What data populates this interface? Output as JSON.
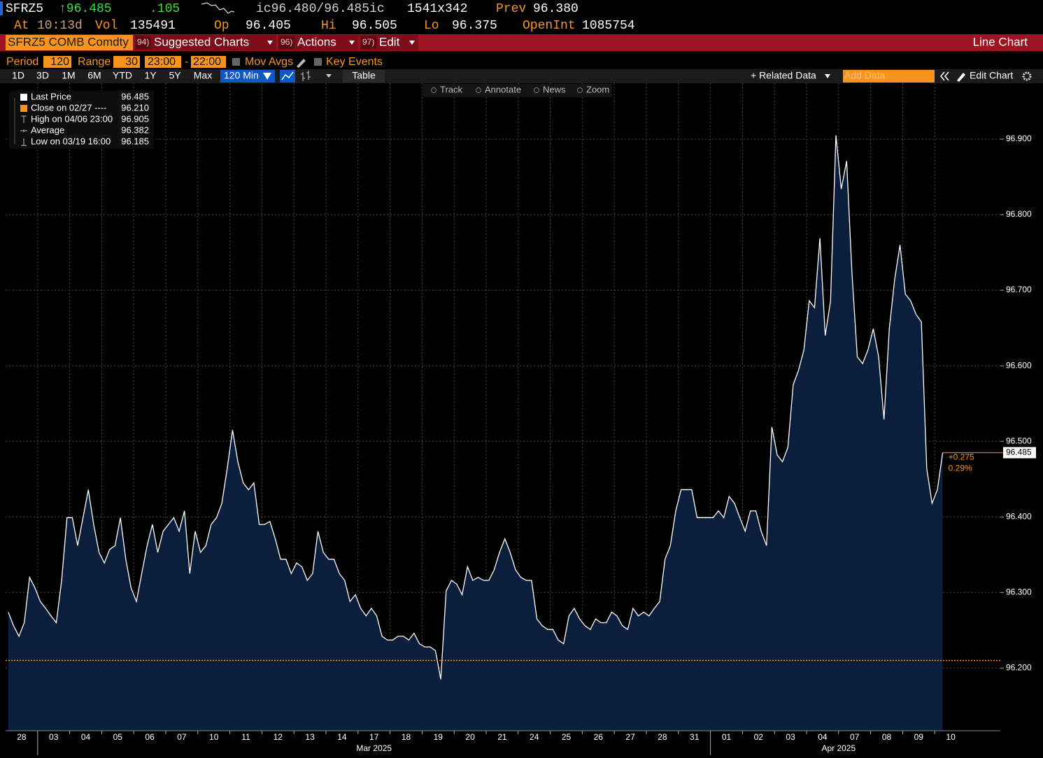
{
  "header": {
    "ticker": "SFRZ5",
    "last": "↑96.485",
    "change": ".105",
    "bid_ask": "ic96.480/96.485ic",
    "size": "1541x342",
    "prev_label": "Prev",
    "prev": "96.380",
    "time_label": "At",
    "time": "10:13d",
    "vol_label": "Vol",
    "vol": "135491",
    "open_label": "Op",
    "open": "96.405",
    "hi_label": "Hi",
    "hi": "96.505",
    "lo_label": "Lo",
    "lo": "96.375",
    "oi_label": "OpenInt",
    "oi": "1085754"
  },
  "menu": {
    "security": "SFRZ5 COMB Comdty",
    "items": [
      {
        "num": "94)",
        "label": "Suggested Charts"
      },
      {
        "num": "96)",
        "label": "Actions"
      },
      {
        "num": "97)",
        "label": "Edit"
      }
    ],
    "view": "Line Chart"
  },
  "settings": {
    "period_label": "Period",
    "period": "120",
    "range_label": "Range",
    "range": "30",
    "start": "23:00",
    "sep": "-",
    "end": "22:00",
    "mov_avgs": "Mov Avgs",
    "key_events": "Key Events"
  },
  "toolbar": {
    "ranges": [
      "1D",
      "3D",
      "1M",
      "6M",
      "YTD",
      "1Y",
      "5Y",
      "Max"
    ],
    "interval": "120 Min",
    "table": "Table",
    "related": "+ Related Data",
    "add_data": "Add Data",
    "edit_chart": "Edit Chart"
  },
  "chart_tools": [
    "Track",
    "Annotate",
    "News",
    "Zoom"
  ],
  "chart_data": {
    "type": "line",
    "categories": [
      "28",
      null,
      null,
      null,
      null,
      null,
      "03",
      null,
      null,
      null,
      null,
      null,
      "04",
      null,
      null,
      null,
      null,
      null,
      "05",
      null,
      null,
      null,
      null,
      null,
      "06",
      null,
      null,
      null,
      null,
      null,
      "07",
      null,
      null,
      null,
      null,
      null,
      "10",
      null,
      null,
      null,
      null,
      null,
      "11",
      null,
      null,
      null,
      null,
      null,
      "12",
      null,
      null,
      null,
      null,
      null,
      "13",
      null,
      null,
      null,
      null,
      null,
      "14",
      null,
      null,
      null,
      null,
      null,
      "17",
      null,
      null,
      null,
      null,
      null,
      "18",
      null,
      null,
      null,
      null,
      null,
      "19",
      null,
      null,
      null,
      null,
      null,
      "20",
      null,
      null,
      null,
      null,
      null,
      "21",
      null,
      null,
      null,
      null,
      null,
      "24",
      null,
      null,
      null,
      null,
      null,
      "25",
      null,
      null,
      null,
      null,
      null,
      "26",
      null,
      null,
      null,
      null,
      null,
      "27",
      null,
      null,
      null,
      null,
      null,
      "28",
      null,
      null,
      null,
      null,
      null,
      "31",
      null,
      null,
      null,
      null,
      null,
      "01",
      null,
      null,
      null,
      null,
      null,
      "02",
      null,
      null,
      null,
      null,
      null,
      "03",
      null,
      null,
      null,
      null,
      null,
      "04",
      null,
      null,
      null,
      null,
      null,
      "07",
      null,
      null,
      null,
      null,
      null,
      "08",
      null,
      null,
      null,
      null,
      null,
      "09",
      null,
      null,
      null,
      null,
      null,
      "10",
      null,
      null,
      null,
      null,
      null
    ],
    "months": [
      "Mar 2025",
      "Apr 2025"
    ],
    "series": [
      {
        "name": "Last Price",
        "color": "#ffffff",
        "fill": "#0b1f3d",
        "values": [
          96.274,
          96.256,
          96.242,
          96.26,
          96.32,
          96.306,
          96.288,
          96.279,
          96.269,
          96.26,
          96.316,
          96.399,
          96.399,
          96.362,
          96.399,
          96.436,
          96.39,
          96.353,
          96.339,
          96.357,
          96.362,
          96.399,
          96.344,
          96.306,
          96.288,
          96.325,
          96.362,
          96.39,
          96.353,
          96.381,
          96.39,
          96.399,
          96.381,
          96.408,
          96.325,
          96.381,
          96.353,
          96.362,
          96.39,
          96.399,
          96.418,
          96.464,
          96.515,
          96.473,
          96.445,
          96.436,
          96.445,
          96.39,
          96.39,
          96.394,
          96.371,
          96.344,
          96.344,
          96.325,
          96.339,
          96.334,
          96.316,
          96.325,
          96.381,
          96.353,
          96.344,
          96.344,
          96.325,
          96.316,
          96.288,
          96.297,
          96.279,
          96.269,
          96.279,
          96.269,
          96.242,
          96.237,
          96.237,
          96.242,
          96.242,
          96.237,
          96.246,
          96.232,
          96.228,
          96.228,
          96.223,
          96.185,
          96.302,
          96.316,
          96.311,
          96.297,
          96.334,
          96.316,
          96.32,
          96.316,
          96.316,
          96.33,
          96.353,
          96.371,
          96.353,
          96.33,
          96.32,
          96.316,
          96.316,
          96.265,
          96.256,
          96.251,
          96.251,
          96.237,
          96.232,
          96.269,
          96.279,
          96.265,
          96.256,
          96.251,
          96.265,
          96.26,
          96.26,
          96.274,
          96.269,
          96.256,
          96.251,
          96.279,
          96.269,
          96.274,
          96.269,
          96.279,
          96.288,
          96.344,
          96.362,
          96.408,
          96.436,
          96.436,
          96.436,
          96.399,
          96.399,
          96.399,
          96.399,
          96.408,
          96.399,
          96.427,
          96.418,
          96.399,
          96.381,
          96.408,
          96.408,
          96.381,
          96.362,
          96.519,
          96.482,
          96.473,
          96.492,
          96.575,
          96.594,
          96.621,
          96.686,
          96.677,
          96.769,
          96.64,
          96.686,
          96.905,
          96.834,
          96.871,
          96.723,
          96.612,
          96.603,
          96.621,
          96.649,
          96.612,
          96.529,
          96.649,
          96.714,
          96.76,
          96.695,
          96.686,
          96.668,
          96.658,
          96.464,
          96.418,
          96.436,
          96.485,
          null,
          null,
          null,
          null
        ]
      }
    ],
    "legend_stats": [
      {
        "label": "Last Price",
        "value": "96.485",
        "color": "#ffffff"
      },
      {
        "label": "Close on 02/27 ----",
        "value": "96.210",
        "color": "#f7941d"
      },
      {
        "label": "High on 04/06 23:00",
        "value": "96.905",
        "color": "#bbbbbb"
      },
      {
        "label": "Average",
        "value": "96.382",
        "color": "#bbbbbb"
      },
      {
        "label": "Low on 03/19 16:00",
        "value": "96.185",
        "color": "#bbbbbb"
      }
    ],
    "reference_line": {
      "value": 96.21,
      "color": "#f7941d"
    },
    "last_tag": {
      "label": "96.485",
      "change": "+0.275",
      "change_pct": "0.29%"
    },
    "ylim": [
      96.117,
      96.974
    ],
    "yticks": [
      {
        "value": 96.2,
        "label": "96.200"
      },
      {
        "value": 96.3,
        "label": "96.300"
      },
      {
        "value": 96.4,
        "label": "96.400"
      },
      {
        "value": 96.5,
        "label": "96.500"
      },
      {
        "value": 96.6,
        "label": "96.600"
      },
      {
        "value": 96.7,
        "label": "96.700"
      },
      {
        "value": 96.8,
        "label": "96.800"
      },
      {
        "value": 96.9,
        "label": "96.900"
      }
    ],
    "grid": true
  }
}
